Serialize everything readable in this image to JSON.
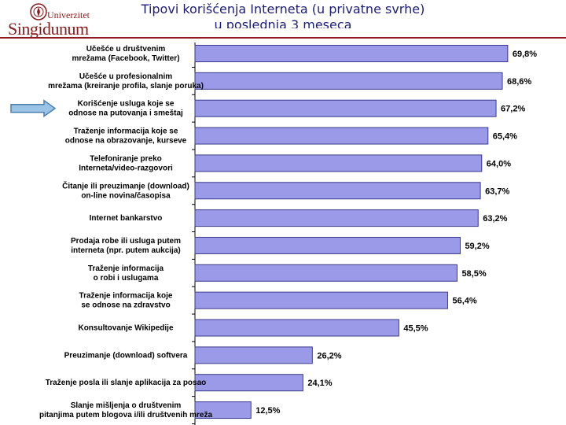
{
  "header": {
    "logo_line1": "Univerzitet",
    "logo_line2": "Singidunum",
    "title_line1": "Tipovi korišćenja Interneta (u privatne svrhe)",
    "title_line2": "u poslednja 3 meseca"
  },
  "colors": {
    "bar_fill": "#9a9ae8",
    "bar_stroke": "#3a3a8a",
    "arrow_fill": "#9ac4e6",
    "brand": "#8b1a1a",
    "title": "#1c1c7a"
  },
  "chart_data": {
    "type": "bar",
    "orientation": "horizontal",
    "title": "Tipovi korišćenja Interneta (u privatne svrhe) u poslednja 3 meseca",
    "xlim": [
      0,
      72
    ],
    "grid": false,
    "highlighted_index": 2,
    "categories": [
      [
        "Učešće u društvenim",
        "mrežama (Facebook, Twitter)"
      ],
      [
        "Učešće u profesionalnim",
        "mrežama (kreiranje profila, slanje poruka)"
      ],
      [
        "Korišćenje usluga koje se",
        "odnose na putovanja i smeštaj"
      ],
      [
        "Traženje informacija koje se",
        "odnose na obrazovanje, kurseve"
      ],
      [
        "Telefoniranje preko",
        "Interneta/video-razgovori"
      ],
      [
        "Čitanje ili preuzimanje (download)",
        "on-line novina/časopisa"
      ],
      [
        "Internet bankarstvo"
      ],
      [
        "Prodaja robe ili usluga putem",
        "interneta (npr. putem aukcija)"
      ],
      [
        "Traženje informacija",
        "o robi i uslugama"
      ],
      [
        "Traženje informacija koje",
        "se odnose na zdravstvo"
      ],
      [
        "Konsultovanje Wikipedije"
      ],
      [
        "Preuzimanje (download) softvera"
      ],
      [
        "Traženje posla ili slanje aplikacija za posao"
      ],
      [
        "Slanje mišljenja o društvenim",
        "pitanjima putem blogova i/ili društvenih mreža"
      ]
    ],
    "values": [
      69.8,
      68.6,
      67.2,
      65.4,
      64.0,
      63.7,
      63.2,
      59.2,
      58.5,
      56.4,
      45.5,
      26.2,
      24.1,
      12.5
    ],
    "value_labels": [
      "69,8%",
      "68,6%",
      "67,2%",
      "65,4%",
      "64,0%",
      "63,7%",
      "63,2%",
      "59,2%",
      "58,5%",
      "56,4%",
      "45,5%",
      "26,2%",
      "24,1%",
      "12,5%"
    ]
  }
}
